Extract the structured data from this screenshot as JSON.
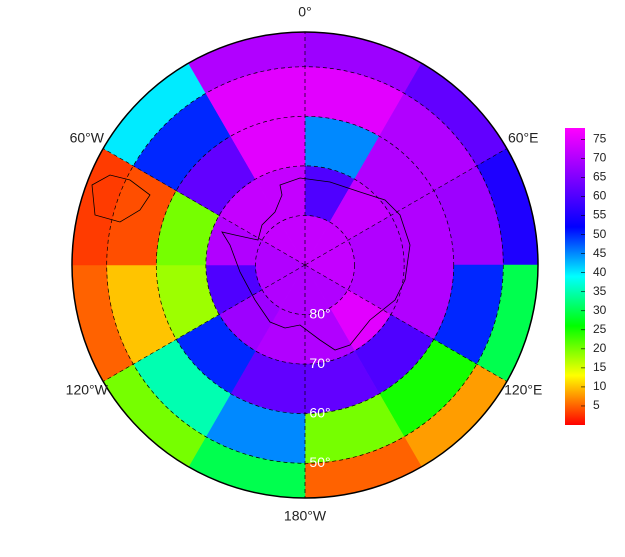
{
  "chart_data": {
    "type": "polar-heatmap",
    "lon_bins": [
      0,
      30,
      60,
      90,
      120,
      150,
      180,
      210,
      240,
      270,
      300,
      330,
      360
    ],
    "lat_bins": [
      -90,
      -80,
      -70,
      -60,
      -50,
      -43
    ],
    "values": [
      [
        72,
        72,
        72,
        72,
        70,
        70,
        70,
        70,
        70,
        70,
        72,
        72
      ],
      [
        60,
        72,
        70,
        70,
        75,
        70,
        70,
        68,
        60,
        70,
        72,
        72
      ],
      [
        45,
        70,
        70,
        70,
        60,
        62,
        62,
        50,
        18,
        20,
        62,
        75
      ],
      [
        75,
        70,
        68,
        50,
        25,
        20,
        45,
        35,
        10,
        4,
        50,
        75
      ],
      [
        68,
        62,
        55,
        30,
        8,
        5,
        30,
        20,
        5,
        3,
        40,
        70
      ]
    ],
    "ylim": [
      -90,
      -43
    ],
    "lonticks": [
      {
        "value": 0,
        "label": "0°"
      },
      {
        "value": 60,
        "label": "60°E"
      },
      {
        "value": 120,
        "label": "120°E"
      },
      {
        "value": 180,
        "label": "180°W"
      },
      {
        "value": 240,
        "label": "120°W"
      },
      {
        "value": 300,
        "label": "60°W"
      }
    ],
    "latticks": [
      {
        "value": -80,
        "label": "80°"
      },
      {
        "value": -70,
        "label": "70°"
      },
      {
        "value": -60,
        "label": "60°"
      },
      {
        "value": -50,
        "label": "50°"
      }
    ],
    "clim": [
      0,
      78
    ],
    "cticks": [
      5,
      10,
      15,
      20,
      25,
      30,
      35,
      40,
      45,
      50,
      55,
      60,
      65,
      70,
      75
    ],
    "colormap": [
      "#ff0000",
      "#ffff00",
      "#00ff00",
      "#00ffff",
      "#0000ff",
      "#8000ff",
      "#ff00ff"
    ]
  }
}
